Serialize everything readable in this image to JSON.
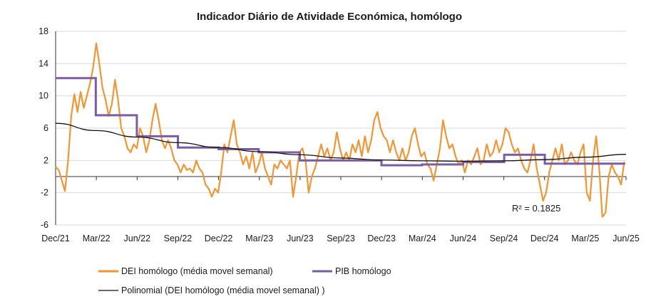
{
  "chart_data": {
    "type": "line",
    "title": "Indicador Diário de Atividade Económica, homólogo",
    "xlabel": "",
    "ylabel": "",
    "x_ticks": [
      "Dec/21",
      "Mar/22",
      "Jun/22",
      "Sep/22",
      "Dec/22",
      "Mar/23",
      "Jun/23",
      "Sep/23",
      "Dec/23",
      "Mar/24",
      "Jun/24",
      "Sep/24",
      "Dec/24",
      "Mar/25",
      "Jun/25"
    ],
    "x_range": [
      "2021-12-01",
      "2025-06-01"
    ],
    "y_ticks": [
      18,
      14,
      10,
      6,
      2,
      -2,
      -6
    ],
    "ylim": [
      -6,
      18
    ],
    "grid": "horizontal",
    "legend_position": "bottom",
    "annotation": "R² = 0.1825",
    "colors": {
      "dei": "#f39530",
      "pib": "#7d5ca6",
      "trend": "#111111",
      "grid": "#d9d9d9"
    },
    "series": [
      {
        "name": "DEI homólogo (média movel semanal)",
        "style": "line",
        "points": [
          [
            "2021-12-01",
            1.2
          ],
          [
            "2021-12-08",
            0.8
          ],
          [
            "2021-12-15",
            -0.5
          ],
          [
            "2021-12-22",
            -1.8
          ],
          [
            "2021-12-29",
            2.0
          ],
          [
            "2022-01-05",
            7.5
          ],
          [
            "2022-01-12",
            10.2
          ],
          [
            "2022-01-19",
            8.0
          ],
          [
            "2022-01-26",
            10.5
          ],
          [
            "2022-02-02",
            8.5
          ],
          [
            "2022-02-09",
            10.0
          ],
          [
            "2022-02-16",
            11.5
          ],
          [
            "2022-02-23",
            13.5
          ],
          [
            "2022-03-02",
            16.5
          ],
          [
            "2022-03-09",
            14.0
          ],
          [
            "2022-03-16",
            11.0
          ],
          [
            "2022-03-23",
            9.5
          ],
          [
            "2022-03-30",
            7.5
          ],
          [
            "2022-04-06",
            9.0
          ],
          [
            "2022-04-13",
            12.0
          ],
          [
            "2022-04-20",
            9.5
          ],
          [
            "2022-04-27",
            6.0
          ],
          [
            "2022-05-04",
            5.0
          ],
          [
            "2022-05-11",
            3.5
          ],
          [
            "2022-05-18",
            3.0
          ],
          [
            "2022-05-25",
            4.0
          ],
          [
            "2022-06-01",
            3.5
          ],
          [
            "2022-06-08",
            6.0
          ],
          [
            "2022-06-15",
            5.0
          ],
          [
            "2022-06-22",
            3.0
          ],
          [
            "2022-06-29",
            4.5
          ],
          [
            "2022-07-06",
            7.0
          ],
          [
            "2022-07-13",
            9.0
          ],
          [
            "2022-07-20",
            7.0
          ],
          [
            "2022-07-27",
            4.5
          ],
          [
            "2022-08-03",
            3.5
          ],
          [
            "2022-08-10",
            4.5
          ],
          [
            "2022-08-17",
            3.5
          ],
          [
            "2022-08-24",
            2.0
          ],
          [
            "2022-08-31",
            1.5
          ],
          [
            "2022-09-07",
            0.5
          ],
          [
            "2022-09-14",
            1.5
          ],
          [
            "2022-09-21",
            0.8
          ],
          [
            "2022-09-28",
            1.0
          ],
          [
            "2022-10-05",
            0.5
          ],
          [
            "2022-10-12",
            2.0
          ],
          [
            "2022-10-19",
            1.0
          ],
          [
            "2022-10-26",
            0.5
          ],
          [
            "2022-11-02",
            -1.0
          ],
          [
            "2022-11-09",
            -1.5
          ],
          [
            "2022-11-16",
            -2.5
          ],
          [
            "2022-11-23",
            -1.5
          ],
          [
            "2022-11-30",
            -2.0
          ],
          [
            "2022-12-07",
            0.5
          ],
          [
            "2022-12-14",
            4.0
          ],
          [
            "2022-12-21",
            3.0
          ],
          [
            "2022-12-28",
            5.0
          ],
          [
            "2023-01-04",
            7.0
          ],
          [
            "2023-01-11",
            4.0
          ],
          [
            "2023-01-18",
            3.0
          ],
          [
            "2023-01-25",
            1.5
          ],
          [
            "2023-02-01",
            2.5
          ],
          [
            "2023-02-08",
            1.0
          ],
          [
            "2023-02-15",
            3.0
          ],
          [
            "2023-02-22",
            0.5
          ],
          [
            "2023-03-01",
            1.5
          ],
          [
            "2023-03-08",
            3.0
          ],
          [
            "2023-03-15",
            1.0
          ],
          [
            "2023-03-22",
            0.0
          ],
          [
            "2023-03-29",
            -1.0
          ],
          [
            "2023-04-05",
            1.5
          ],
          [
            "2023-04-12",
            1.0
          ],
          [
            "2023-04-19",
            2.0
          ],
          [
            "2023-04-26",
            1.5
          ],
          [
            "2023-05-03",
            1.0
          ],
          [
            "2023-05-10",
            2.0
          ],
          [
            "2023-05-17",
            -2.5
          ],
          [
            "2023-05-24",
            0.0
          ],
          [
            "2023-05-31",
            3.0
          ],
          [
            "2023-06-07",
            3.5
          ],
          [
            "2023-06-14",
            2.0
          ],
          [
            "2023-06-21",
            -2.0
          ],
          [
            "2023-06-28",
            0.0
          ],
          [
            "2023-07-05",
            1.0
          ],
          [
            "2023-07-12",
            2.5
          ],
          [
            "2023-07-19",
            4.0
          ],
          [
            "2023-07-26",
            2.5
          ],
          [
            "2023-08-02",
            3.5
          ],
          [
            "2023-08-09",
            2.0
          ],
          [
            "2023-08-16",
            3.0
          ],
          [
            "2023-08-23",
            5.5
          ],
          [
            "2023-08-30",
            3.5
          ],
          [
            "2023-09-06",
            2.0
          ],
          [
            "2023-09-13",
            3.0
          ],
          [
            "2023-09-20",
            2.0
          ],
          [
            "2023-09-27",
            4.0
          ],
          [
            "2023-10-04",
            3.0
          ],
          [
            "2023-10-11",
            4.5
          ],
          [
            "2023-10-18",
            2.5
          ],
          [
            "2023-10-25",
            5.0
          ],
          [
            "2023-11-01",
            3.0
          ],
          [
            "2023-11-08",
            4.5
          ],
          [
            "2023-11-15",
            7.0
          ],
          [
            "2023-11-22",
            8.0
          ],
          [
            "2023-11-29",
            6.0
          ],
          [
            "2023-12-06",
            5.0
          ],
          [
            "2023-12-13",
            4.5
          ],
          [
            "2023-12-20",
            3.0
          ],
          [
            "2023-12-27",
            4.5
          ],
          [
            "2024-01-03",
            3.0
          ],
          [
            "2024-01-10",
            2.0
          ],
          [
            "2024-01-17",
            3.5
          ],
          [
            "2024-01-24",
            2.0
          ],
          [
            "2024-01-31",
            3.0
          ],
          [
            "2024-02-07",
            5.0
          ],
          [
            "2024-02-14",
            6.0
          ],
          [
            "2024-02-21",
            4.0
          ],
          [
            "2024-02-28",
            2.5
          ],
          [
            "2024-03-06",
            3.0
          ],
          [
            "2024-03-13",
            1.5
          ],
          [
            "2024-03-20",
            1.0
          ],
          [
            "2024-03-27",
            -0.5
          ],
          [
            "2024-04-03",
            1.5
          ],
          [
            "2024-04-10",
            3.5
          ],
          [
            "2024-04-17",
            7.0
          ],
          [
            "2024-04-24",
            5.0
          ],
          [
            "2024-05-01",
            3.5
          ],
          [
            "2024-05-08",
            4.0
          ],
          [
            "2024-05-15",
            2.5
          ],
          [
            "2024-05-22",
            1.5
          ],
          [
            "2024-05-29",
            2.0
          ],
          [
            "2024-06-05",
            0.5
          ],
          [
            "2024-06-12",
            2.0
          ],
          [
            "2024-06-19",
            1.5
          ],
          [
            "2024-06-26",
            2.5
          ],
          [
            "2024-07-03",
            3.5
          ],
          [
            "2024-07-10",
            1.5
          ],
          [
            "2024-07-17",
            2.0
          ],
          [
            "2024-07-24",
            4.0
          ],
          [
            "2024-07-31",
            2.5
          ],
          [
            "2024-08-07",
            3.0
          ],
          [
            "2024-08-14",
            4.5
          ],
          [
            "2024-08-21",
            3.0
          ],
          [
            "2024-08-28",
            4.0
          ],
          [
            "2024-09-04",
            6.0
          ],
          [
            "2024-09-11",
            5.5
          ],
          [
            "2024-09-18",
            4.0
          ],
          [
            "2024-09-25",
            3.0
          ],
          [
            "2024-10-02",
            3.5
          ],
          [
            "2024-10-09",
            2.0
          ],
          [
            "2024-10-16",
            1.0
          ],
          [
            "2024-10-23",
            0.5
          ],
          [
            "2024-10-30",
            2.0
          ],
          [
            "2024-11-06",
            4.0
          ],
          [
            "2024-11-13",
            1.0
          ],
          [
            "2024-11-20",
            -1.0
          ],
          [
            "2024-11-27",
            -3.0
          ],
          [
            "2024-12-04",
            -2.0
          ],
          [
            "2024-12-11",
            0.5
          ],
          [
            "2024-12-18",
            2.0
          ],
          [
            "2024-12-25",
            3.5
          ],
          [
            "2025-01-01",
            2.0
          ],
          [
            "2025-01-08",
            4.0
          ],
          [
            "2025-01-15",
            1.5
          ],
          [
            "2025-01-22",
            2.0
          ],
          [
            "2025-01-29",
            3.0
          ],
          [
            "2025-02-05",
            2.0
          ],
          [
            "2025-02-12",
            1.5
          ],
          [
            "2025-02-19",
            3.0
          ],
          [
            "2025-02-26",
            4.0
          ],
          [
            "2025-03-05",
            -2.0
          ],
          [
            "2025-03-12",
            -3.0
          ],
          [
            "2025-03-19",
            2.0
          ],
          [
            "2025-03-26",
            5.0
          ],
          [
            "2025-04-02",
            1.0
          ],
          [
            "2025-04-09",
            -5.0
          ],
          [
            "2025-04-16",
            -4.5
          ],
          [
            "2025-04-23",
            0.0
          ],
          [
            "2025-04-30",
            1.5
          ],
          [
            "2025-05-07",
            0.5
          ],
          [
            "2025-05-14",
            0.0
          ],
          [
            "2025-05-21",
            -1.0
          ],
          [
            "2025-05-28",
            1.8
          ]
        ]
      },
      {
        "name": "PIB homólogo",
        "style": "step",
        "points": [
          [
            "2021-12-01",
            12.2
          ],
          [
            "2022-03-01",
            7.6
          ],
          [
            "2022-06-01",
            5.0
          ],
          [
            "2022-09-01",
            3.6
          ],
          [
            "2022-12-01",
            3.4
          ],
          [
            "2023-03-01",
            3.0
          ],
          [
            "2023-06-01",
            2.0
          ],
          [
            "2023-09-01",
            2.0
          ],
          [
            "2023-12-01",
            1.4
          ],
          [
            "2024-03-01",
            1.5
          ],
          [
            "2024-06-01",
            1.8
          ],
          [
            "2024-09-01",
            2.7
          ],
          [
            "2024-12-01",
            1.6
          ],
          [
            "2025-03-01",
            1.6
          ]
        ]
      },
      {
        "name": "Polinomial (DEI homólogo (média movel semanal) )",
        "style": "trend",
        "points": [
          [
            "2021-12-01",
            6.6
          ],
          [
            "2022-03-01",
            5.7
          ],
          [
            "2022-06-01",
            4.9
          ],
          [
            "2022-09-01",
            4.2
          ],
          [
            "2022-12-01",
            3.6
          ],
          [
            "2023-03-01",
            3.1
          ],
          [
            "2023-06-01",
            2.7
          ],
          [
            "2023-09-01",
            2.3
          ],
          [
            "2023-12-01",
            2.05
          ],
          [
            "2024-03-01",
            1.95
          ],
          [
            "2024-06-01",
            1.9
          ],
          [
            "2024-09-01",
            1.95
          ],
          [
            "2024-12-01",
            2.1
          ],
          [
            "2025-03-01",
            2.4
          ],
          [
            "2025-06-01",
            2.75
          ]
        ]
      }
    ]
  }
}
